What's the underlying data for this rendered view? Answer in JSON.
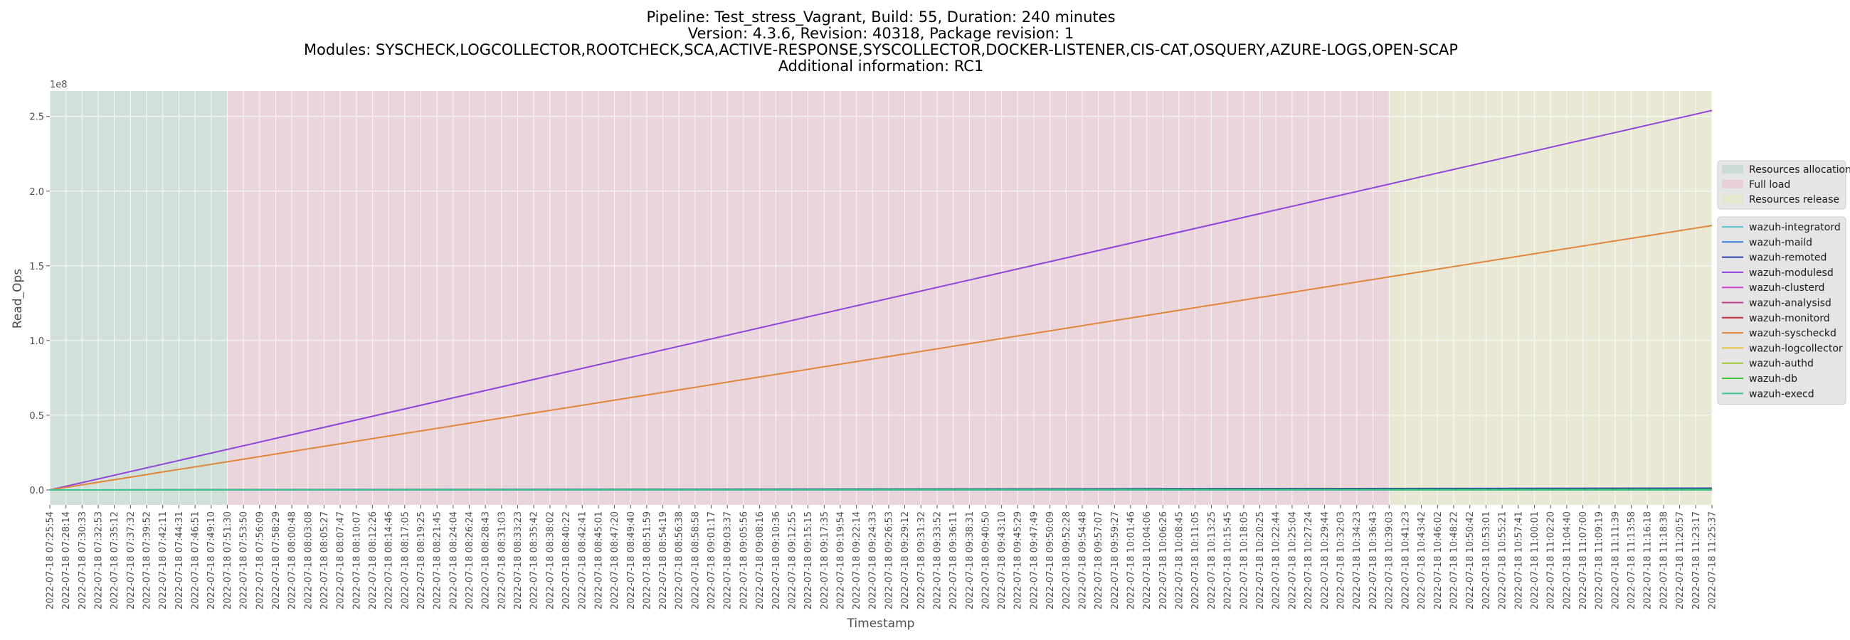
{
  "chart_data": {
    "type": "line",
    "title_lines": [
      "Pipeline: Test_stress_Vagrant, Build: 55, Duration: 240 minutes",
      "Version: 4.3.6, Revision: 40318, Package revision: 1",
      "Modules: SYSCHECK,LOGCOLLECTOR,ROOTCHECK,SCA,ACTIVE-RESPONSE,SYSCOLLECTOR,DOCKER-LISTENER,CIS-CAT,OSQUERY,AZURE-LOGS,OPEN-SCAP",
      "Additional information: RC1"
    ],
    "xlabel": "Timestamp",
    "ylabel": "Read_Ops",
    "y_multiplier_label": "1e8",
    "ylim": [
      -10000000,
      267000000
    ],
    "y_ticks": [
      0,
      50000000,
      100000000,
      150000000,
      200000000,
      250000000
    ],
    "y_tick_labels": [
      "0.0",
      "0.5",
      "1.0",
      "1.5",
      "2.0",
      "2.5"
    ],
    "x_start": "2022-07-18 07:25:54",
    "x_end": "2022-07-18 11:25:37",
    "x_tick_labels": [
      "2022-07-18 07:25:54",
      "2022-07-18 07:28:14",
      "2022-07-18 07:30:33",
      "2022-07-18 07:32:53",
      "2022-07-18 07:35:12",
      "2022-07-18 07:37:32",
      "2022-07-18 07:39:52",
      "2022-07-18 07:42:11",
      "2022-07-18 07:44:31",
      "2022-07-18 07:46:51",
      "2022-07-18 07:49:10",
      "2022-07-18 07:51:30",
      "2022-07-18 07:53:50",
      "2022-07-18 07:56:09",
      "2022-07-18 07:58:29",
      "2022-07-18 08:00:48",
      "2022-07-18 08:03:08",
      "2022-07-18 08:05:27",
      "2022-07-18 08:07:47",
      "2022-07-18 08:10:07",
      "2022-07-18 08:12:26",
      "2022-07-18 08:14:46",
      "2022-07-18 08:17:05",
      "2022-07-18 08:19:25",
      "2022-07-18 08:21:45",
      "2022-07-18 08:24:04",
      "2022-07-18 08:26:24",
      "2022-07-18 08:28:43",
      "2022-07-18 08:31:03",
      "2022-07-18 08:33:23",
      "2022-07-18 08:35:42",
      "2022-07-18 08:38:02",
      "2022-07-18 08:40:22",
      "2022-07-18 08:42:41",
      "2022-07-18 08:45:01",
      "2022-07-18 08:47:20",
      "2022-07-18 08:49:40",
      "2022-07-18 08:51:59",
      "2022-07-18 08:54:19",
      "2022-07-18 08:56:38",
      "2022-07-18 08:58:58",
      "2022-07-18 09:01:17",
      "2022-07-18 09:03:37",
      "2022-07-18 09:05:56",
      "2022-07-18 09:08:16",
      "2022-07-18 09:10:36",
      "2022-07-18 09:12:55",
      "2022-07-18 09:15:15",
      "2022-07-18 09:17:35",
      "2022-07-18 09:19:54",
      "2022-07-18 09:22:14",
      "2022-07-18 09:24:33",
      "2022-07-18 09:26:53",
      "2022-07-18 09:29:12",
      "2022-07-18 09:31:32",
      "2022-07-18 09:33:52",
      "2022-07-18 09:36:11",
      "2022-07-18 09:38:31",
      "2022-07-18 09:40:50",
      "2022-07-18 09:43:10",
      "2022-07-18 09:45:29",
      "2022-07-18 09:47:49",
      "2022-07-18 09:50:09",
      "2022-07-18 09:52:28",
      "2022-07-18 09:54:48",
      "2022-07-18 09:57:07",
      "2022-07-18 09:59:27",
      "2022-07-18 10:01:46",
      "2022-07-18 10:04:06",
      "2022-07-18 10:06:26",
      "2022-07-18 10:08:45",
      "2022-07-18 10:11:05",
      "2022-07-18 10:13:25",
      "2022-07-18 10:15:45",
      "2022-07-18 10:18:05",
      "2022-07-18 10:20:25",
      "2022-07-18 10:22:44",
      "2022-07-18 10:25:04",
      "2022-07-18 10:27:24",
      "2022-07-18 10:29:44",
      "2022-07-18 10:32:03",
      "2022-07-18 10:34:23",
      "2022-07-18 10:36:43",
      "2022-07-18 10:39:03",
      "2022-07-18 10:41:23",
      "2022-07-18 10:43:42",
      "2022-07-18 10:46:02",
      "2022-07-18 10:48:22",
      "2022-07-18 10:50:42",
      "2022-07-18 10:53:01",
      "2022-07-18 10:55:21",
      "2022-07-18 10:57:41",
      "2022-07-18 11:00:01",
      "2022-07-18 11:02:20",
      "2022-07-18 11:04:40",
      "2022-07-18 11:07:00",
      "2022-07-18 11:09:19",
      "2022-07-18 11:11:39",
      "2022-07-18 11:13:58",
      "2022-07-18 11:16:18",
      "2022-07-18 11:18:38",
      "2022-07-18 11:20:57",
      "2022-07-18 11:23:17",
      "2022-07-18 11:25:37"
    ],
    "phases": [
      {
        "name": "Resources allocation",
        "start": "2022-07-18 07:25:54",
        "end": "2022-07-18 07:51:30",
        "color": "#b8d6c8"
      },
      {
        "name": "Full load",
        "start": "2022-07-18 07:51:30",
        "end": "2022-07-18 10:39:03",
        "color": "#e8c0cc"
      },
      {
        "name": "Resources release",
        "start": "2022-07-18 10:39:03",
        "end": "2022-07-18 11:25:37",
        "color": "#e6e6c0"
      }
    ],
    "series": [
      {
        "name": "wazuh-integratord",
        "color": "#5bc0c8",
        "x": [
          "2022-07-18 07:25:54",
          "2022-07-18 11:25:37"
        ],
        "y": [
          0,
          0
        ]
      },
      {
        "name": "wazuh-maild",
        "color": "#3b7dd8",
        "x": [
          "2022-07-18 07:25:54",
          "2022-07-18 11:25:37"
        ],
        "y": [
          0,
          0
        ]
      },
      {
        "name": "wazuh-remoted",
        "color": "#2b3fa8",
        "x": [
          "2022-07-18 07:25:54",
          "2022-07-18 11:25:37"
        ],
        "y": [
          0,
          1200000
        ]
      },
      {
        "name": "wazuh-modulesd",
        "color": "#8e44d9",
        "x": [
          "2022-07-18 07:25:54",
          "2022-07-18 11:25:37"
        ],
        "y": [
          0,
          254000000
        ]
      },
      {
        "name": "wazuh-clusterd",
        "color": "#cc44cc",
        "x": [
          "2022-07-18 07:25:54",
          "2022-07-18 11:25:37"
        ],
        "y": [
          0,
          0
        ]
      },
      {
        "name": "wazuh-analysisd",
        "color": "#c23a8a",
        "x": [
          "2022-07-18 07:25:54",
          "2022-07-18 11:25:37"
        ],
        "y": [
          0,
          0
        ]
      },
      {
        "name": "wazuh-monitord",
        "color": "#c0283a",
        "x": [
          "2022-07-18 07:25:54",
          "2022-07-18 11:25:37"
        ],
        "y": [
          0,
          0
        ]
      },
      {
        "name": "wazuh-syscheckd",
        "color": "#e0853a",
        "x": [
          "2022-07-18 07:25:54",
          "2022-07-18 11:25:37"
        ],
        "y": [
          0,
          177000000
        ]
      },
      {
        "name": "wazuh-logcollector",
        "color": "#e0c040",
        "x": [
          "2022-07-18 07:25:54",
          "2022-07-18 11:25:37"
        ],
        "y": [
          0,
          0
        ]
      },
      {
        "name": "wazuh-authd",
        "color": "#a0c83a",
        "x": [
          "2022-07-18 07:25:54",
          "2022-07-18 11:25:37"
        ],
        "y": [
          0,
          0
        ]
      },
      {
        "name": "wazuh-db",
        "color": "#3cc43c",
        "x": [
          "2022-07-18 07:25:54",
          "2022-07-18 11:25:37"
        ],
        "y": [
          0,
          400000
        ]
      },
      {
        "name": "wazuh-execd",
        "color": "#3cc48c",
        "x": [
          "2022-07-18 07:25:54",
          "2022-07-18 11:25:37"
        ],
        "y": [
          0,
          0
        ]
      }
    ],
    "grid": true,
    "legend_placement": "right"
  }
}
